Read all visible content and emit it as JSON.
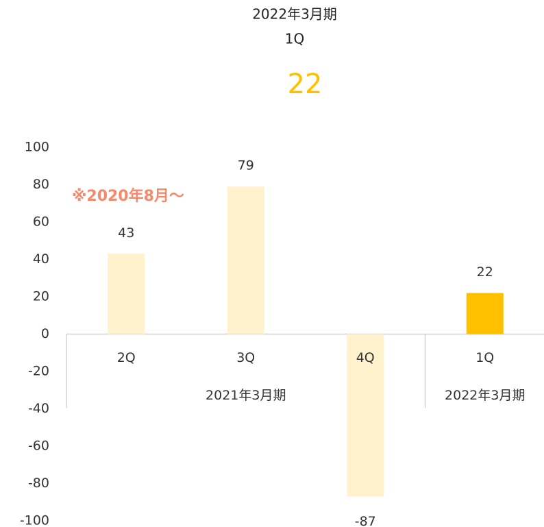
{
  "header": {
    "period": "2022年3月期",
    "quarter": "1Q",
    "value": 22
  },
  "chart_data": {
    "type": "bar",
    "categories": [
      "2Q",
      "3Q",
      "4Q",
      "1Q"
    ],
    "groups": [
      "2021年3月期",
      "2022年3月期"
    ],
    "values": [
      43,
      79,
      -87,
      22
    ],
    "colors": [
      "#fff2cc",
      "#fff2cc",
      "#fff2cc",
      "#ffc000"
    ],
    "annotation": "※2020年8月～",
    "ylim": [
      -100,
      100
    ],
    "yticks": [
      -100,
      -80,
      -60,
      -40,
      -20,
      0,
      20,
      40,
      60,
      80,
      100
    ],
    "grid": false
  }
}
